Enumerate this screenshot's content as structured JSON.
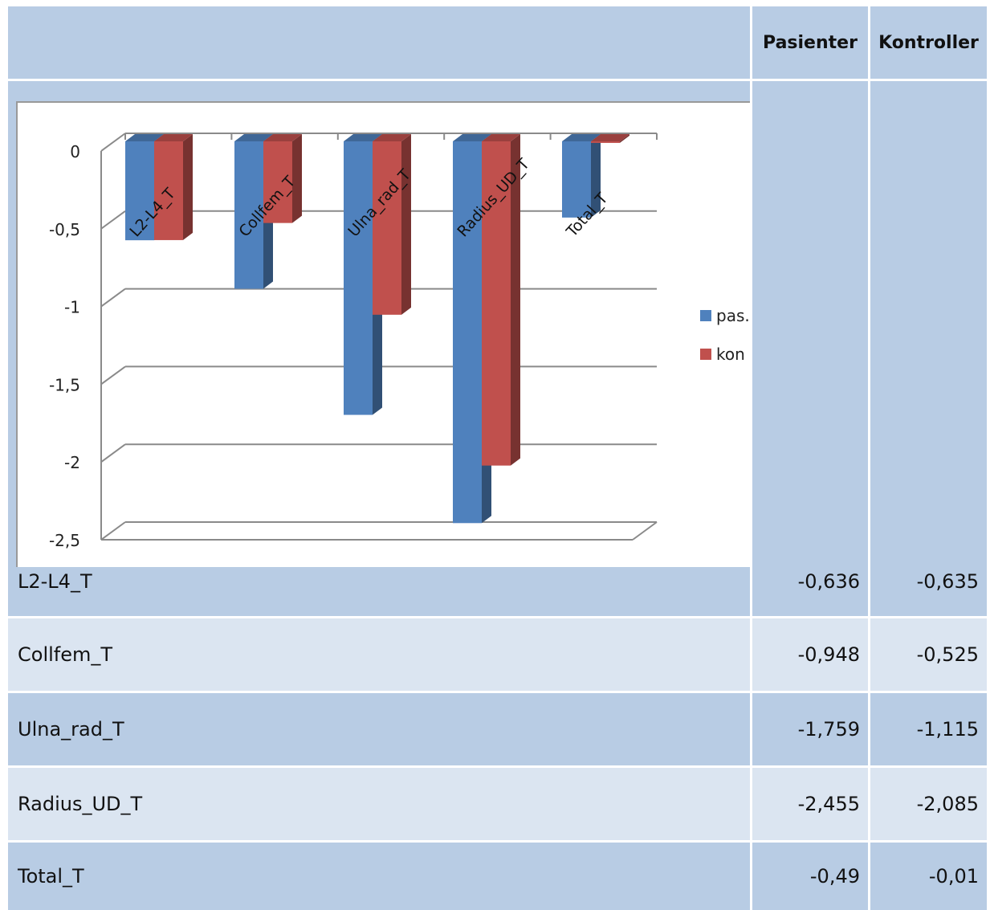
{
  "table": {
    "columns": [
      "Pasienter",
      "Kontroller"
    ],
    "rows": [
      {
        "label": "L2-L4_T",
        "pasienter": "-0,636",
        "kontroller": "-0,635"
      },
      {
        "label": "Collfem_T",
        "pasienter": "-0,948",
        "kontroller": "-0,525"
      },
      {
        "label": "Ulna_rad_T",
        "pasienter": "-1,759",
        "kontroller": "-1,115"
      },
      {
        "label": "Radius_UD_T",
        "pasienter": "-2,455",
        "kontroller": "-2,085"
      },
      {
        "label": "Total_T",
        "pasienter": "-0,49",
        "kontroller": "-0,01"
      }
    ]
  },
  "colors": {
    "header_bg": "#b8cce4",
    "row_dark": "#b8cce4",
    "row_light": "#dbe5f1",
    "pas": "#4f81bd",
    "kon": "#c0504d"
  },
  "chart_data": {
    "type": "bar",
    "style": "3d-clustered-column",
    "categories": [
      "L2-L4_T",
      "Collfem_T",
      "Ulna_rad_T",
      "Radius_UD_T",
      "Total_T"
    ],
    "series": [
      {
        "name": "pas.",
        "values": [
          -0.636,
          -0.948,
          -1.759,
          -2.455,
          -0.49
        ],
        "color": "#4f81bd"
      },
      {
        "name": "kon",
        "values": [
          -0.635,
          -0.525,
          -1.115,
          -2.085,
          -0.01
        ],
        "color": "#c0504d"
      }
    ],
    "yticks": [
      "0",
      "-0,5",
      "-1",
      "-1,5",
      "-2",
      "-2,5"
    ],
    "ylim": [
      -2.5,
      0
    ],
    "grid": true,
    "legend": "right"
  }
}
